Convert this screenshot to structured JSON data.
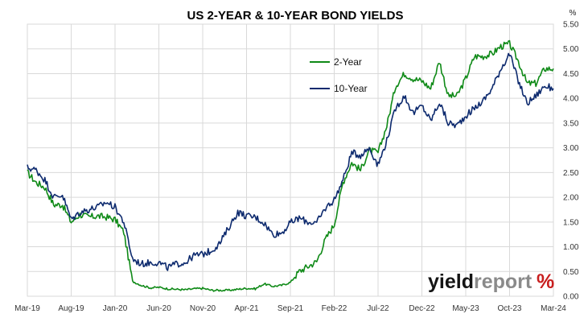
{
  "chart_data": {
    "type": "line",
    "title": "US 2-YEAR & 10-YEAR BOND YIELDS",
    "ylabel_unit": "%",
    "ylim": [
      0,
      5.5
    ],
    "y_ticks": [
      "0.00",
      "0.50",
      "1.00",
      "1.50",
      "2.00",
      "2.50",
      "3.00",
      "3.50",
      "4.00",
      "4.50",
      "5.00",
      "5.50"
    ],
    "y_tick_values": [
      0,
      0.5,
      1,
      1.5,
      2,
      2.5,
      3,
      3.5,
      4,
      4.5,
      5,
      5.5
    ],
    "x_range": [
      "2019-03",
      "2024-03"
    ],
    "x_ticks": [
      "Mar-19",
      "Aug-19",
      "Jan-20",
      "Jun-20",
      "Nov-20",
      "Apr-21",
      "Sep-21",
      "Feb-22",
      "Jul-22",
      "Dec-22",
      "May-23",
      "Oct-23",
      "Mar-24"
    ],
    "grid": true,
    "legend_position": "top-right",
    "series": [
      {
        "name": "2-Year",
        "color": "#0f8a17",
        "points": [
          [
            "2019-03",
            2.5
          ],
          [
            "2019-04",
            2.3
          ],
          [
            "2019-05",
            2.2
          ],
          [
            "2019-06",
            1.85
          ],
          [
            "2019-07",
            1.85
          ],
          [
            "2019-08",
            1.5
          ],
          [
            "2019-09",
            1.65
          ],
          [
            "2019-10",
            1.6
          ],
          [
            "2019-11",
            1.62
          ],
          [
            "2019-12",
            1.6
          ],
          [
            "2020-01",
            1.55
          ],
          [
            "2020-02",
            1.3
          ],
          [
            "2020-03",
            0.3
          ],
          [
            "2020-04",
            0.22
          ],
          [
            "2020-05",
            0.17
          ],
          [
            "2020-06",
            0.18
          ],
          [
            "2020-07",
            0.15
          ],
          [
            "2020-08",
            0.14
          ],
          [
            "2020-09",
            0.13
          ],
          [
            "2020-10",
            0.15
          ],
          [
            "2020-11",
            0.16
          ],
          [
            "2020-12",
            0.12
          ],
          [
            "2021-01",
            0.12
          ],
          [
            "2021-02",
            0.12
          ],
          [
            "2021-03",
            0.14
          ],
          [
            "2021-04",
            0.16
          ],
          [
            "2021-05",
            0.15
          ],
          [
            "2021-06",
            0.25
          ],
          [
            "2021-07",
            0.2
          ],
          [
            "2021-08",
            0.22
          ],
          [
            "2021-09",
            0.28
          ],
          [
            "2021-10",
            0.5
          ],
          [
            "2021-11",
            0.6
          ],
          [
            "2021-12",
            0.7
          ],
          [
            "2022-01",
            1.15
          ],
          [
            "2022-02",
            1.45
          ],
          [
            "2022-03",
            2.3
          ],
          [
            "2022-04",
            2.7
          ],
          [
            "2022-05",
            2.55
          ],
          [
            "2022-06",
            2.95
          ],
          [
            "2022-07",
            2.9
          ],
          [
            "2022-08",
            3.45
          ],
          [
            "2022-09",
            4.25
          ],
          [
            "2022-10",
            4.5
          ],
          [
            "2022-11",
            4.4
          ],
          [
            "2022-12",
            4.35
          ],
          [
            "2023-01",
            4.2
          ],
          [
            "2023-02",
            4.75
          ],
          [
            "2023-03",
            4.05
          ],
          [
            "2023-04",
            4.05
          ],
          [
            "2023-05",
            4.4
          ],
          [
            "2023-06",
            4.85
          ],
          [
            "2023-07",
            4.85
          ],
          [
            "2023-08",
            4.9
          ],
          [
            "2023-09",
            5.05
          ],
          [
            "2023-10",
            5.1
          ],
          [
            "2023-11",
            4.75
          ],
          [
            "2023-12",
            4.3
          ],
          [
            "2024-01",
            4.3
          ],
          [
            "2024-02",
            4.6
          ],
          [
            "2024-03",
            4.6
          ]
        ]
      },
      {
        "name": "10-Year",
        "color": "#0d2a6e",
        "points": [
          [
            "2019-03",
            2.6
          ],
          [
            "2019-04",
            2.55
          ],
          [
            "2019-05",
            2.35
          ],
          [
            "2019-06",
            2.0
          ],
          [
            "2019-07",
            2.05
          ],
          [
            "2019-08",
            1.55
          ],
          [
            "2019-09",
            1.7
          ],
          [
            "2019-10",
            1.75
          ],
          [
            "2019-11",
            1.8
          ],
          [
            "2019-12",
            1.9
          ],
          [
            "2020-01",
            1.8
          ],
          [
            "2020-02",
            1.5
          ],
          [
            "2020-03",
            0.75
          ],
          [
            "2020-04",
            0.65
          ],
          [
            "2020-05",
            0.68
          ],
          [
            "2020-06",
            0.68
          ],
          [
            "2020-07",
            0.58
          ],
          [
            "2020-08",
            0.65
          ],
          [
            "2020-09",
            0.68
          ],
          [
            "2020-10",
            0.82
          ],
          [
            "2020-11",
            0.85
          ],
          [
            "2020-12",
            0.92
          ],
          [
            "2021-01",
            1.08
          ],
          [
            "2021-02",
            1.4
          ],
          [
            "2021-03",
            1.7
          ],
          [
            "2021-04",
            1.62
          ],
          [
            "2021-05",
            1.6
          ],
          [
            "2021-06",
            1.48
          ],
          [
            "2021-07",
            1.25
          ],
          [
            "2021-08",
            1.28
          ],
          [
            "2021-09",
            1.48
          ],
          [
            "2021-10",
            1.58
          ],
          [
            "2021-11",
            1.5
          ],
          [
            "2021-12",
            1.48
          ],
          [
            "2022-01",
            1.78
          ],
          [
            "2022-02",
            1.95
          ],
          [
            "2022-03",
            2.35
          ],
          [
            "2022-04",
            2.9
          ],
          [
            "2022-05",
            2.85
          ],
          [
            "2022-06",
            3.0
          ],
          [
            "2022-07",
            2.65
          ],
          [
            "2022-08",
            3.15
          ],
          [
            "2022-09",
            3.8
          ],
          [
            "2022-10",
            4.05
          ],
          [
            "2022-11",
            3.7
          ],
          [
            "2022-12",
            3.85
          ],
          [
            "2023-01",
            3.55
          ],
          [
            "2023-02",
            3.92
          ],
          [
            "2023-03",
            3.5
          ],
          [
            "2023-04",
            3.45
          ],
          [
            "2023-05",
            3.65
          ],
          [
            "2023-06",
            3.8
          ],
          [
            "2023-07",
            3.95
          ],
          [
            "2023-08",
            4.2
          ],
          [
            "2023-09",
            4.6
          ],
          [
            "2023-10",
            4.9
          ],
          [
            "2023-11",
            4.35
          ],
          [
            "2023-12",
            3.9
          ],
          [
            "2024-01",
            4.05
          ],
          [
            "2024-02",
            4.25
          ],
          [
            "2024-03",
            4.2
          ]
        ]
      }
    ]
  },
  "watermark": {
    "part1": "yield",
    "part2": "report",
    "part3": "%"
  }
}
